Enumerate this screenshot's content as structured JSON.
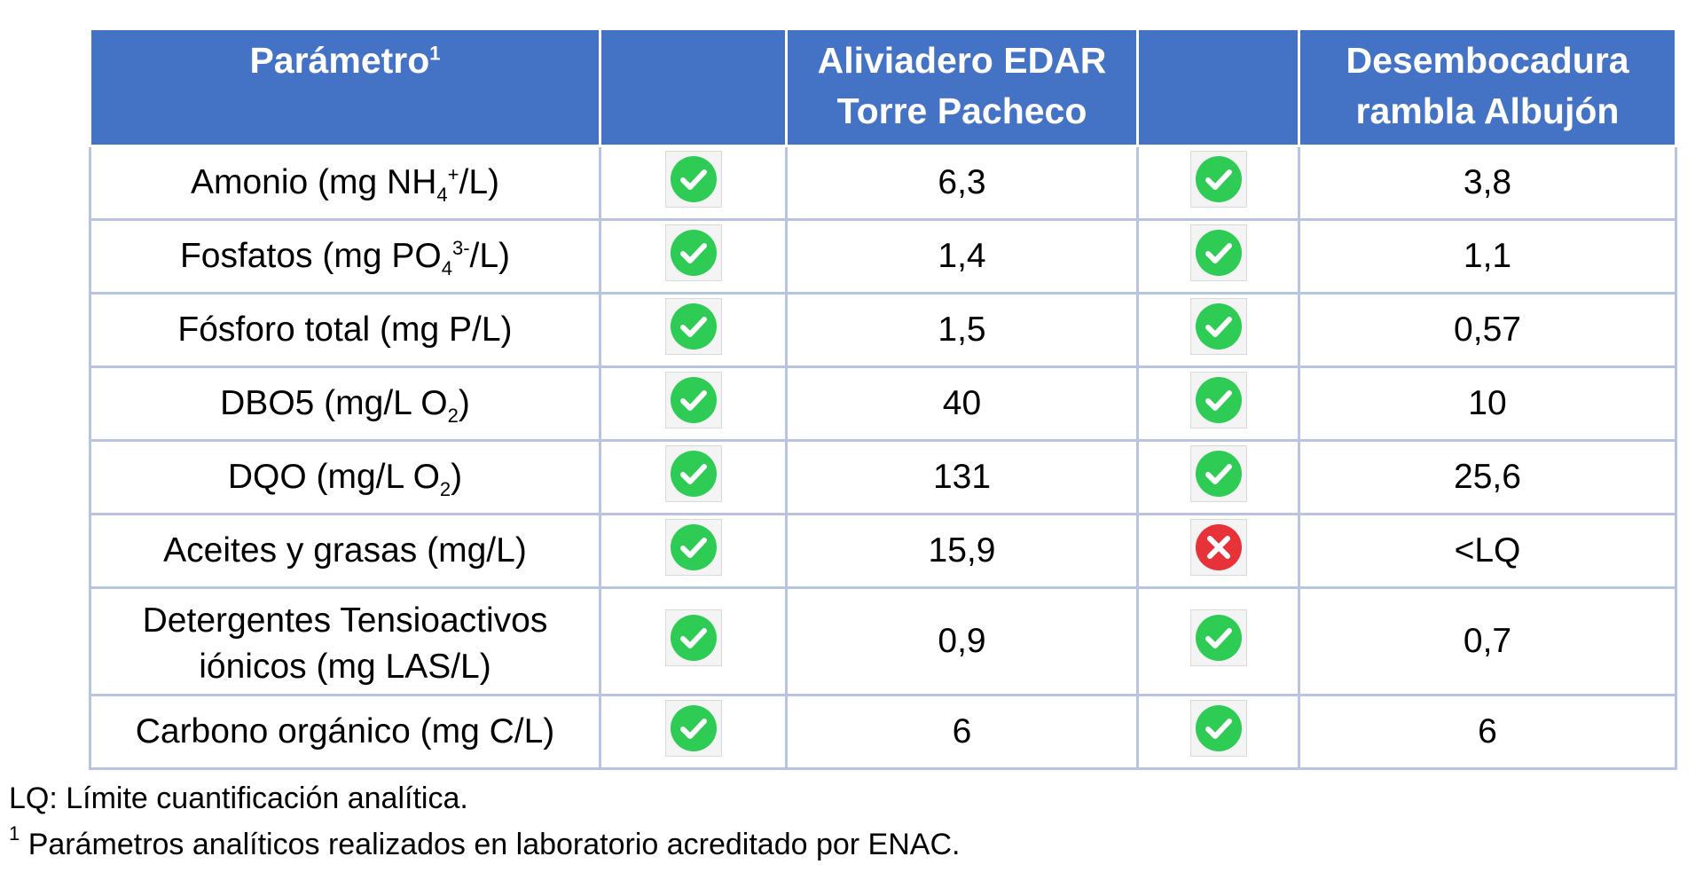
{
  "table": {
    "headers": {
      "parameter": "Parámetro",
      "parameter_sup": "1",
      "site1_line1": "Aliviadero EDAR",
      "site1_line2": "Torre Pacheco",
      "site2_line1": "Desembocadura",
      "site2_line2": "rambla Albujón"
    },
    "rows": [
      {
        "param": [
          "Amonio (mg NH",
          "4",
          "+",
          "/L)"
        ],
        "status1": "ok",
        "value1": "6,3",
        "status2": "ok",
        "value2": "3,8"
      },
      {
        "param": [
          "Fosfatos (mg PO",
          "4",
          "3-",
          "/L)"
        ],
        "status1": "ok",
        "value1": "1,4",
        "status2": "ok",
        "value2": "1,1"
      },
      {
        "param": [
          "Fósforo total (mg P/L)"
        ],
        "status1": "ok",
        "value1": "1,5",
        "status2": "ok",
        "value2": "0,57"
      },
      {
        "param": [
          "DBO5 (mg/L O",
          "2",
          ")"
        ],
        "status1": "ok",
        "value1": "40",
        "status2": "ok",
        "value2": "10"
      },
      {
        "param": [
          "DQO (mg/L O",
          "2",
          ")"
        ],
        "status1": "ok",
        "value1": "131",
        "status2": "ok",
        "value2": "25,6"
      },
      {
        "param": [
          "Aceites y grasas (mg/L)"
        ],
        "status1": "ok",
        "value1": "15,9",
        "status2": "fail",
        "value2": "<LQ"
      },
      {
        "param": [
          "Detergentes Tensioactivos",
          "iónicos (mg LAS/L)"
        ],
        "status1": "ok",
        "value1": "0,9",
        "status2": "ok",
        "value2": "0,7"
      },
      {
        "param": [
          "Carbono orgánico (mg C/L)"
        ],
        "status1": "ok",
        "value1": "6",
        "status2": "ok",
        "value2": "6"
      }
    ],
    "status_icons": {
      "ok": "check-circle-icon",
      "fail": "x-circle-icon"
    }
  },
  "footnotes": {
    "lq": "LQ: Límite cuantificación analítica.",
    "enac_marker": "1",
    "enac": " Parámetros analíticos realizados en laboratorio acreditado por ENAC."
  },
  "colors": {
    "header_bg": "#4472c4",
    "check_green": "#2ecc55",
    "cross_red": "#e8323a"
  }
}
